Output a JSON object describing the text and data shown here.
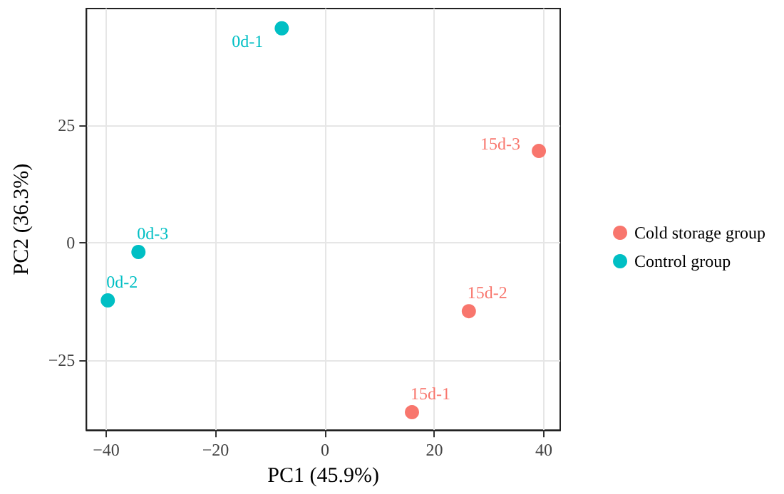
{
  "chart_data": {
    "type": "scatter",
    "xlabel": "PC1 (45.9%)",
    "ylabel": "PC2 (36.3%)",
    "xlim": [
      -43.6,
      43
    ],
    "ylim": [
      -39.9,
      49.8
    ],
    "xticks": [
      -40,
      -20,
      0,
      20,
      40
    ],
    "yticks": [
      -25,
      0,
      25
    ],
    "grid": true,
    "legend": "right",
    "marker": "circle",
    "series": [
      {
        "name": "Cold storage group",
        "color": "#f8766d",
        "x": [
          15.9,
          26.3,
          39.1
        ],
        "values": [
          -36.1,
          -14.6,
          19.5
        ],
        "value_labels": [
          "15d-1",
          "15d-2",
          "15d-3"
        ]
      },
      {
        "name": "Control group",
        "color": "#00bfc4",
        "x": [
          -7.9,
          -39.7,
          -34.1
        ],
        "values": [
          45.6,
          -12.3,
          -2.0
        ],
        "value_labels": [
          "0d-1",
          "0d-2",
          "0d-3"
        ]
      }
    ]
  }
}
